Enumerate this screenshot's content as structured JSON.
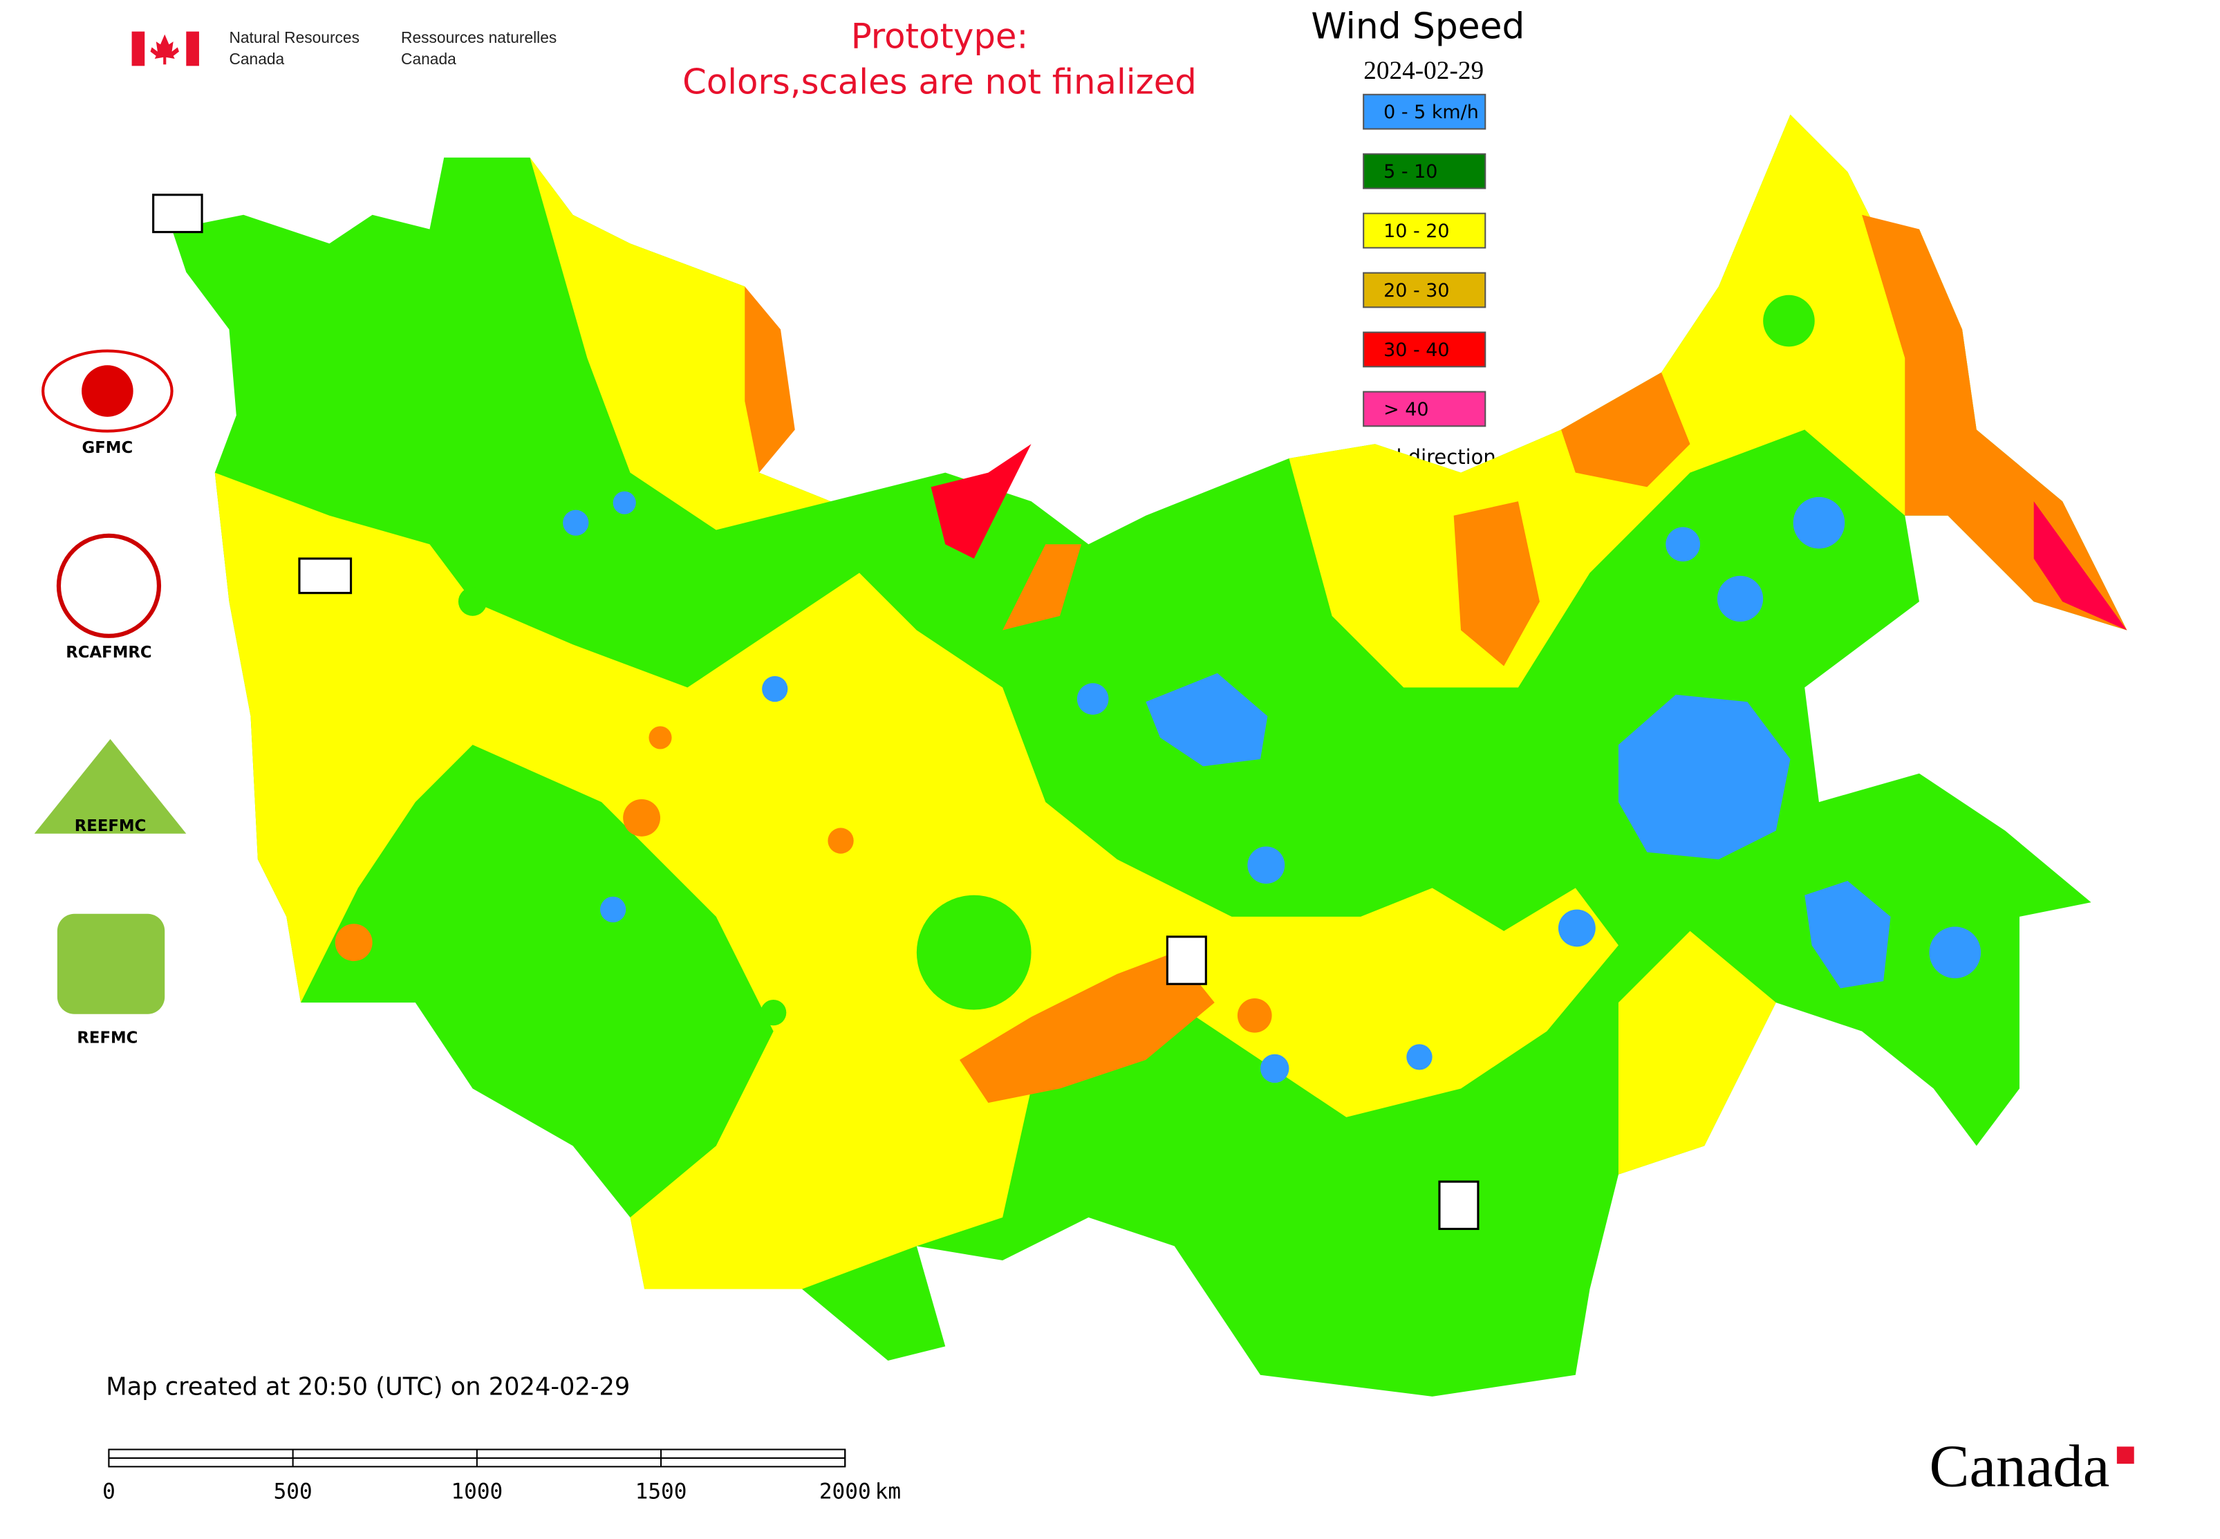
{
  "header": {
    "agency_en": [
      "Natural Resources",
      "Canada"
    ],
    "agency_fr": [
      "Ressources naturelles",
      "Canada"
    ],
    "notice": [
      "Prototype:",
      "Colors,scales are not finalized"
    ]
  },
  "title": "Wind Speed",
  "date": "2024-02-29",
  "legend": [
    {
      "label": "0 - 5 km/h",
      "color": "#3399ff"
    },
    {
      "label": "5 - 10",
      "color": "#008000"
    },
    {
      "label": "10 - 20",
      "color": "#ffff00"
    },
    {
      "label": "20 - 30",
      "color": "#e0b400"
    },
    {
      "label": "30 - 40",
      "color": "#ff0000"
    },
    {
      "label": "> 40",
      "color": "#ff3399"
    }
  ],
  "wind_direction": "Wind direction",
  "logos": [
    "GFMC",
    "RCAFMRC",
    "REEFMC",
    "REFMC"
  ],
  "footer": "Map created at 20:50 (UTC) on 2024-02-29",
  "scale_bar": {
    "ticks": [
      0,
      500,
      1000,
      1500,
      2000
    ],
    "unit": "km"
  },
  "wordmark": "Canada"
}
